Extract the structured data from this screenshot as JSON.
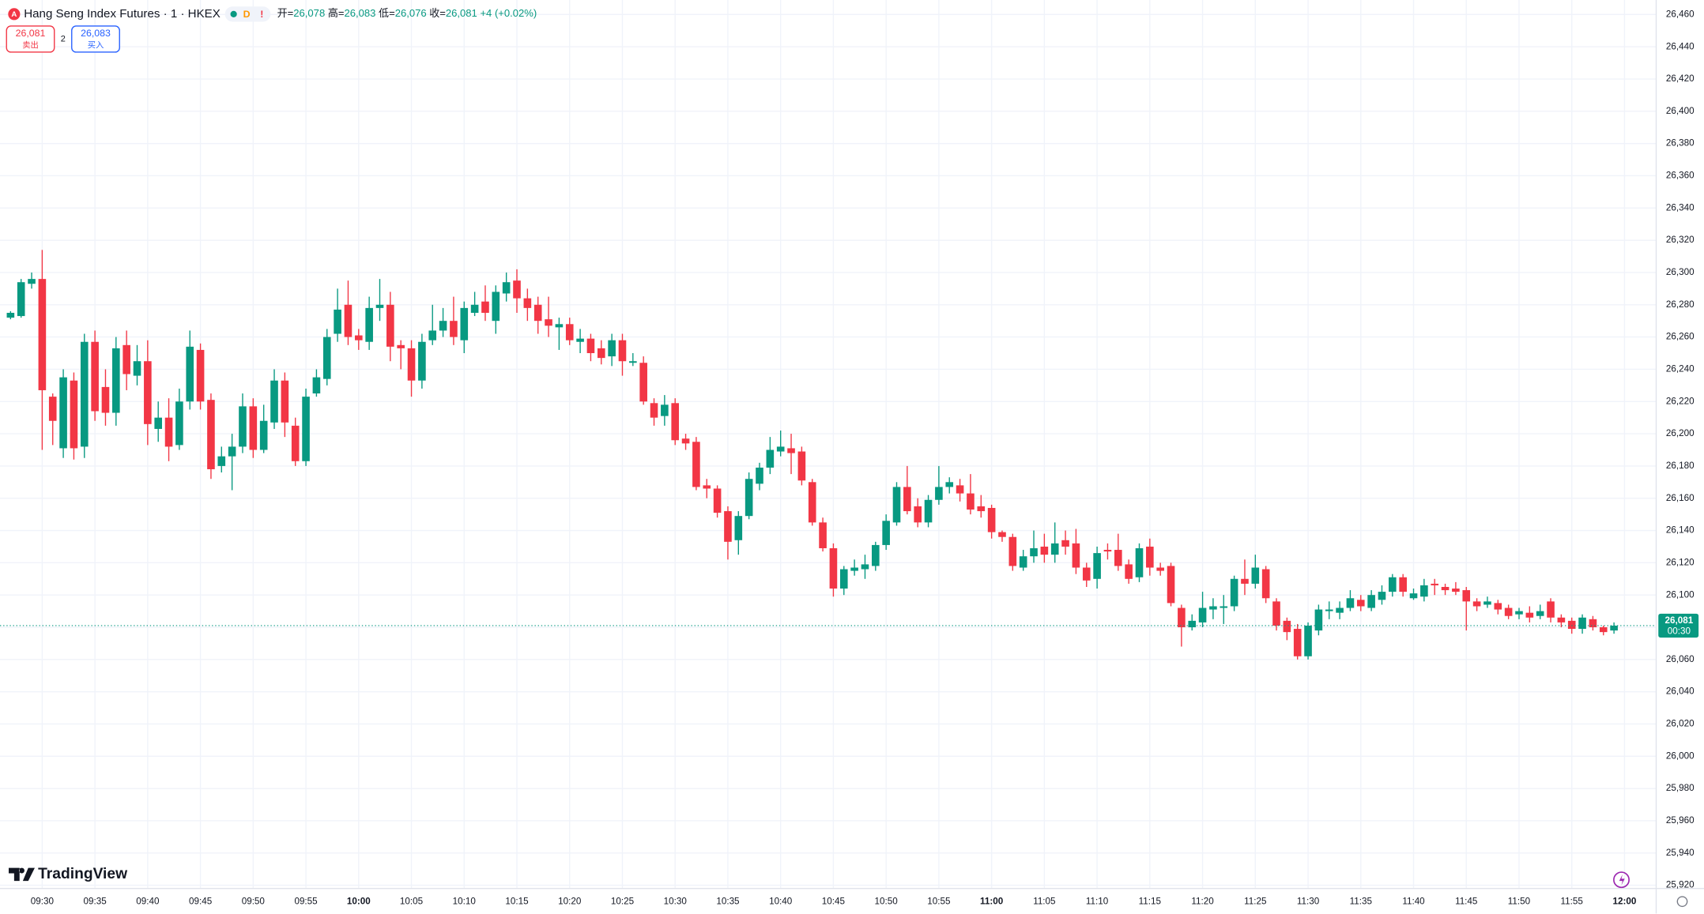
{
  "header": {
    "title": "Hang Seng Index Futures · 1 · HKEX",
    "badge_d": "D",
    "badge_warn": "!",
    "ohlc": [
      {
        "key": "开=",
        "value": "26,078"
      },
      {
        "key": "高=",
        "value": "26,083"
      },
      {
        "key": "低=",
        "value": "26,076"
      },
      {
        "key": "收=",
        "value": "26,081"
      }
    ],
    "change": "+4 (+0.02%)",
    "sell": {
      "price": "26,081",
      "label": "卖出"
    },
    "spread": "2",
    "buy": {
      "price": "26,083",
      "label": "买入"
    }
  },
  "branding": "TradingView",
  "chart_data": {
    "type": "candlestick",
    "up_color": "#089981",
    "down_color": "#f23645",
    "grid": true,
    "x": [
      "09:27",
      "09:28",
      "09:29",
      "09:30",
      "09:31",
      "09:32",
      "09:33",
      "09:34",
      "09:35",
      "09:36",
      "09:37",
      "09:38",
      "09:39",
      "09:40",
      "09:41",
      "09:42",
      "09:43",
      "09:44",
      "09:45",
      "09:46",
      "09:47",
      "09:48",
      "09:49",
      "09:50",
      "09:51",
      "09:52",
      "09:53",
      "09:54",
      "09:55",
      "09:56",
      "09:57",
      "09:58",
      "09:59",
      "10:00",
      "10:01",
      "10:02",
      "10:03",
      "10:04",
      "10:05",
      "10:06",
      "10:07",
      "10:08",
      "10:09",
      "10:10",
      "10:11",
      "10:12",
      "10:13",
      "10:14",
      "10:15",
      "10:16",
      "10:17",
      "10:18",
      "10:19",
      "10:20",
      "10:21",
      "10:22",
      "10:23",
      "10:24",
      "10:25",
      "10:26",
      "10:27",
      "10:28",
      "10:29",
      "10:30",
      "10:31",
      "10:32",
      "10:33",
      "10:34",
      "10:35",
      "10:36",
      "10:37",
      "10:38",
      "10:39",
      "10:40",
      "10:41",
      "10:42",
      "10:43",
      "10:44",
      "10:45",
      "10:46",
      "10:47",
      "10:48",
      "10:49",
      "10:50",
      "10:51",
      "10:52",
      "10:53",
      "10:54",
      "10:55",
      "10:56",
      "10:57",
      "10:58",
      "10:59",
      "11:00",
      "11:01",
      "11:02",
      "11:03",
      "11:04",
      "11:05",
      "11:06",
      "11:07",
      "11:08",
      "11:09",
      "11:10",
      "11:11",
      "11:12",
      "11:13",
      "11:14",
      "11:15",
      "11:16",
      "11:17",
      "11:18",
      "11:19",
      "11:20",
      "11:21",
      "11:22",
      "11:23",
      "11:24",
      "11:25",
      "11:26",
      "11:27",
      "11:28",
      "11:29",
      "11:30",
      "11:31",
      "11:32",
      "11:33",
      "11:34",
      "11:35",
      "11:36",
      "11:37",
      "11:38",
      "11:39",
      "11:40",
      "11:41",
      "11:42",
      "11:43",
      "11:44",
      "11:45",
      "11:46",
      "11:47",
      "11:48",
      "11:49",
      "11:50",
      "11:51",
      "11:52",
      "11:53",
      "11:54",
      "11:55",
      "11:56",
      "11:57",
      "11:58",
      "11:59"
    ],
    "open": [
      26272,
      26273,
      26293,
      26296,
      26223,
      26191,
      26233,
      26192,
      26257,
      26229,
      26213,
      26255,
      26236,
      26245,
      26203,
      26210,
      26193,
      26220,
      26252,
      26221,
      26180,
      26186,
      26192,
      26217,
      26190,
      26207,
      26233,
      26205,
      26183,
      26225,
      26234,
      26262,
      26280,
      26261,
      26257,
      26278,
      26280,
      26255,
      26253,
      26233,
      26258,
      26264,
      26270,
      26258,
      26275,
      26282,
      26270,
      26287,
      26295,
      26284,
      26280,
      26271,
      26266,
      26268,
      26257,
      26259,
      26253,
      26248,
      26258,
      26244,
      26244,
      26219,
      26211,
      26219,
      26197,
      26195,
      26168,
      26166,
      26152,
      26134,
      26149,
      26169,
      26179,
      26189,
      26191,
      26189,
      26170,
      26145,
      26129,
      26104,
      26115,
      26116,
      26118,
      26131,
      26145,
      26167,
      26155,
      26145,
      26159,
      26167,
      26168,
      26163,
      26155,
      26154,
      26139,
      26136,
      26117,
      26124,
      26130,
      26125,
      26134,
      26132,
      26117,
      26110,
      26128,
      26128,
      26119,
      26111,
      26130,
      26117,
      26118,
      26092,
      26080,
      26083,
      26091,
      26092,
      26093,
      26110,
      26107,
      26116,
      26096,
      26084,
      26079,
      26062,
      26078,
      26090,
      26089,
      26092,
      26097,
      26092,
      26097,
      26102,
      26111,
      26098,
      26099,
      26107,
      26105,
      26104,
      26103,
      26096,
      26094,
      26095,
      26092,
      26088,
      26089,
      26087,
      26096,
      26086,
      26084,
      26079,
      26085,
      26080,
      26078
    ],
    "high": [
      26276,
      26296,
      26300,
      26314,
      26225,
      26240,
      26238,
      26262,
      26264,
      26240,
      26260,
      26264,
      26255,
      26258,
      26220,
      26222,
      26228,
      26264,
      26256,
      26225,
      26192,
      26200,
      26225,
      26222,
      26218,
      26240,
      26238,
      26210,
      26228,
      26240,
      26265,
      26290,
      26295,
      26265,
      26285,
      26296,
      26288,
      26258,
      26258,
      26262,
      26280,
      26278,
      26285,
      26282,
      26288,
      26292,
      26292,
      26300,
      26302,
      26290,
      26285,
      26285,
      26272,
      26272,
      26265,
      26262,
      26258,
      26262,
      26262,
      26250,
      26248,
      26222,
      26224,
      26222,
      26200,
      26198,
      26172,
      26168,
      26155,
      26152,
      26176,
      26182,
      26198,
      26202,
      26200,
      26192,
      26172,
      26148,
      26132,
      26118,
      26122,
      26125,
      26133,
      26150,
      26170,
      26180,
      26160,
      26162,
      26180,
      26173,
      26172,
      26175,
      26162,
      26156,
      26140,
      26138,
      26128,
      26140,
      26138,
      26145,
      26140,
      26141,
      26120,
      26130,
      26132,
      26138,
      26122,
      26132,
      26135,
      26120,
      26120,
      26094,
      26088,
      26102,
      26098,
      26100,
      26112,
      26122,
      26125,
      26118,
      26098,
      26086,
      26082,
      26083,
      26094,
      26096,
      26096,
      26103,
      26100,
      26103,
      26106,
      26113,
      26113,
      26104,
      26110,
      26110,
      26107,
      26108,
      26105,
      26098,
      26099,
      26097,
      26094,
      26092,
      26093,
      26094,
      26098,
      26088,
      26086,
      26088,
      26087,
      26081,
      26083
    ],
    "low": [
      26271,
      26272,
      26290,
      26190,
      26193,
      26185,
      26184,
      26185,
      26208,
      26205,
      26205,
      26227,
      26230,
      26193,
      26195,
      26183,
      26190,
      26215,
      26215,
      26172,
      26176,
      26165,
      26188,
      26185,
      26188,
      26203,
      26198,
      26180,
      26180,
      26223,
      26230,
      26257,
      26255,
      26252,
      26252,
      26270,
      26245,
      26240,
      26223,
      26228,
      26255,
      26260,
      26255,
      26250,
      26273,
      26270,
      26262,
      26282,
      26275,
      26270,
      26262,
      26260,
      26252,
      26255,
      26250,
      26245,
      26243,
      26242,
      26236,
      26242,
      26218,
      26205,
      26205,
      26193,
      26190,
      26165,
      26160,
      26148,
      26122,
      26125,
      26147,
      26165,
      26175,
      26186,
      26175,
      26168,
      26143,
      26127,
      26099,
      26100,
      26112,
      26110,
      26115,
      26128,
      26143,
      26150,
      26142,
      26142,
      26156,
      26163,
      26158,
      26150,
      26148,
      26135,
      26133,
      26115,
      26115,
      26120,
      26120,
      26120,
      26125,
      26113,
      26105,
      26104,
      26122,
      26115,
      26107,
      26108,
      26112,
      26112,
      26093,
      26068,
      26078,
      26080,
      26085,
      26082,
      26090,
      26100,
      26104,
      26095,
      26078,
      26072,
      26060,
      26060,
      26075,
      26085,
      26085,
      26090,
      26090,
      26090,
      26094,
      26099,
      26099,
      26097,
      26096,
      26100,
      26100,
      26100,
      26078,
      26090,
      26092,
      26088,
      26085,
      26085,
      26083,
      26085,
      26083,
      26080,
      26076,
      26076,
      26078,
      26075,
      26076
    ],
    "close": [
      26275,
      26294,
      26296,
      26227,
      26208,
      26235,
      26191,
      26257,
      26214,
      26213,
      26253,
      26237,
      26245,
      26206,
      26210,
      26192,
      26220,
      26254,
      26220,
      26178,
      26186,
      26192,
      26217,
      26190,
      26208,
      26233,
      26207,
      26183,
      26223,
      26235,
      26260,
      26277,
      26260,
      26258,
      26278,
      26280,
      26254,
      26253,
      26233,
      26257,
      26264,
      26270,
      26260,
      26278,
      26280,
      26275,
      26288,
      26294,
      26284,
      26278,
      26270,
      26267,
      26268,
      26258,
      26259,
      26250,
      26247,
      26258,
      26245,
      26245,
      26220,
      26210,
      26218,
      26196,
      26194,
      26167,
      26166,
      26151,
      26133,
      26149,
      26172,
      26179,
      26190,
      26192,
      26188,
      26171,
      26145,
      26129,
      26104,
      26116,
      26117,
      26119,
      26131,
      26146,
      26167,
      26152,
      26145,
      26159,
      26167,
      26170,
      26163,
      26153,
      26152,
      26139,
      26136,
      26118,
      26124,
      26129,
      26125,
      26132,
      26130,
      26117,
      26109,
      26126,
      26127,
      26118,
      26110,
      26129,
      26117,
      26115,
      26095,
      26080,
      26084,
      26092,
      26093,
      26093,
      26110,
      26107,
      26117,
      26098,
      26081,
      26077,
      26062,
      26081,
      26091,
      26091,
      26092,
      26098,
      26093,
      26100,
      26102,
      26111,
      26102,
      26101,
      26106,
      26106,
      26103,
      26102,
      26096,
      26093,
      26096,
      26091,
      26087,
      26090,
      26086,
      26090,
      26086,
      26083,
      26079,
      26086,
      26080,
      26077,
      26081
    ],
    "xlim": [
      "09:26",
      "12:03"
    ],
    "xticks": [
      "09:30",
      "09:35",
      "09:40",
      "09:45",
      "09:50",
      "09:55",
      "10:00",
      "10:05",
      "10:10",
      "10:15",
      "10:20",
      "10:25",
      "10:30",
      "10:35",
      "10:40",
      "10:45",
      "10:50",
      "10:55",
      "11:00",
      "11:05",
      "11:10",
      "11:15",
      "11:20",
      "11:25",
      "11:30",
      "11:35",
      "11:40",
      "11:45",
      "11:50",
      "11:55",
      "12:00"
    ],
    "ylim": [
      25918,
      26469
    ],
    "yticks": [
      {
        "value": 26460,
        "label": "26,460"
      },
      {
        "value": 26440,
        "label": "26,440"
      },
      {
        "value": 26420,
        "label": "26,420"
      },
      {
        "value": 26400,
        "label": "26,400"
      },
      {
        "value": 26380,
        "label": "26,380"
      },
      {
        "value": 26360,
        "label": "26,360"
      },
      {
        "value": 26340,
        "label": "26,340"
      },
      {
        "value": 26320,
        "label": "26,320"
      },
      {
        "value": 26300,
        "label": "26,300"
      },
      {
        "value": 26280,
        "label": "26,280"
      },
      {
        "value": 26260,
        "label": "26,260"
      },
      {
        "value": 26240,
        "label": "26,240"
      },
      {
        "value": 26220,
        "label": "26,220"
      },
      {
        "value": 26200,
        "label": "26,200"
      },
      {
        "value": 26180,
        "label": "26,180"
      },
      {
        "value": 26160,
        "label": "26,160"
      },
      {
        "value": 26140,
        "label": "26,140"
      },
      {
        "value": 26120,
        "label": "26,120"
      },
      {
        "value": 26100,
        "label": "26,100"
      },
      {
        "value": 26080,
        "label": "26,080"
      },
      {
        "value": 26060,
        "label": "26,060"
      },
      {
        "value": 26040,
        "label": "26,040"
      },
      {
        "value": 26020,
        "label": "26,020"
      },
      {
        "value": 26000,
        "label": "26,000"
      },
      {
        "value": 25980,
        "label": "25,980"
      },
      {
        "value": 25960,
        "label": "25,960"
      },
      {
        "value": 25940,
        "label": "25,940"
      },
      {
        "value": 25920,
        "label": "25,920"
      }
    ],
    "last_price": {
      "value": 26081,
      "label": "26,081"
    },
    "countdown": "00:30"
  }
}
